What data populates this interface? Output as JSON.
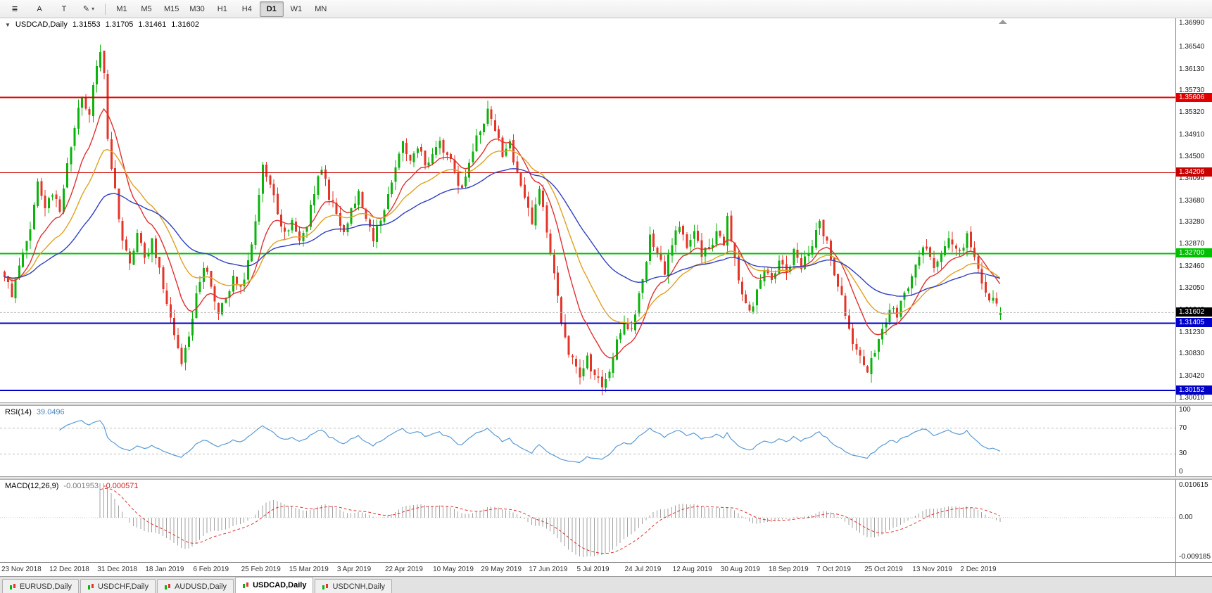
{
  "toolbar": {
    "left_tools": [
      {
        "name": "chart-list-icon-button",
        "glyph": "≣"
      },
      {
        "name": "pointer-tool-button",
        "label": "A"
      },
      {
        "name": "text-tool-button",
        "label": "T"
      },
      {
        "name": "draw-tool-button",
        "glyph": "✎",
        "caret": true
      }
    ],
    "timeframes": [
      "M1",
      "M5",
      "M15",
      "M30",
      "H1",
      "H4",
      "D1",
      "W1",
      "MN"
    ],
    "active_timeframe": "D1"
  },
  "main_header": {
    "expander": "▼",
    "symbol": "USDCAD,Daily",
    "open": "1.31553",
    "high": "1.31705",
    "low": "1.31461",
    "close": "1.31602"
  },
  "rsi_header": {
    "label": "RSI(14)",
    "value": "39.0496"
  },
  "macd_header": {
    "label": "MACD(12,26,9)",
    "main": "-0.001953",
    "signal": "-0.000571"
  },
  "chart_data": {
    "type": "candlestick",
    "symbol": "USDCAD",
    "timeframe": "Daily",
    "visible_range": {
      "price_min": 1.2993,
      "price_max": 1.3708
    },
    "last_bar": {
      "open": 1.31553,
      "high": 1.31705,
      "low": 1.31461,
      "close": 1.31602
    },
    "current_price": 1.31602,
    "current_price_tag": {
      "label": "1.31602",
      "bg": "#000000"
    },
    "candle_colors": {
      "up": "#0cb30c",
      "down": "#e53529"
    },
    "close_pivots": [
      [
        0,
        1.3228
      ],
      [
        2,
        1.3192
      ],
      [
        4,
        1.3248
      ],
      [
        6,
        1.3292
      ],
      [
        8,
        1.336
      ],
      [
        9,
        1.3405
      ],
      [
        11,
        1.3352
      ],
      [
        13,
        1.3378
      ],
      [
        15,
        1.3348
      ],
      [
        17,
        1.3438
      ],
      [
        19,
        1.3502
      ],
      [
        21,
        1.3562
      ],
      [
        23,
        1.3528
      ],
      [
        25,
        1.3618
      ],
      [
        26,
        1.3642
      ],
      [
        27,
        1.3605
      ],
      [
        28,
        1.3482
      ],
      [
        30,
        1.3392
      ],
      [
        32,
        1.3292
      ],
      [
        34,
        1.3252
      ],
      [
        36,
        1.3306
      ],
      [
        38,
        1.3262
      ],
      [
        40,
        1.3298
      ],
      [
        42,
        1.3246
      ],
      [
        44,
        1.3178
      ],
      [
        46,
        1.3118
      ],
      [
        48,
        1.3062
      ],
      [
        49,
        1.3096
      ],
      [
        51,
        1.3148
      ],
      [
        52,
        1.3198
      ],
      [
        54,
        1.3244
      ],
      [
        56,
        1.3206
      ],
      [
        58,
        1.3156
      ],
      [
        60,
        1.3186
      ],
      [
        62,
        1.3228
      ],
      [
        64,
        1.3206
      ],
      [
        66,
        1.3258
      ],
      [
        68,
        1.3332
      ],
      [
        70,
        1.3438
      ],
      [
        72,
        1.3398
      ],
      [
        74,
        1.3342
      ],
      [
        76,
        1.3312
      ],
      [
        78,
        1.3332
      ],
      [
        80,
        1.3292
      ],
      [
        82,
        1.3322
      ],
      [
        84,
        1.3378
      ],
      [
        86,
        1.3428
      ],
      [
        88,
        1.3372
      ],
      [
        90,
        1.3342
      ],
      [
        92,
        1.3312
      ],
      [
        94,
        1.3352
      ],
      [
        96,
        1.3388
      ],
      [
        98,
        1.3332
      ],
      [
        100,
        1.3292
      ],
      [
        102,
        1.3332
      ],
      [
        104,
        1.3378
      ],
      [
        106,
        1.3428
      ],
      [
        108,
        1.3478
      ],
      [
        110,
        1.3442
      ],
      [
        112,
        1.3468
      ],
      [
        114,
        1.3432
      ],
      [
        116,
        1.3458
      ],
      [
        118,
        1.3478
      ],
      [
        120,
        1.3452
      ],
      [
        122,
        1.3422
      ],
      [
        124,
        1.3392
      ],
      [
        126,
        1.3438
      ],
      [
        128,
        1.3488
      ],
      [
        130,
        1.3512
      ],
      [
        131,
        1.3542
      ],
      [
        133,
        1.3498
      ],
      [
        135,
        1.3452
      ],
      [
        137,
        1.3478
      ],
      [
        139,
        1.3422
      ],
      [
        141,
        1.3372
      ],
      [
        143,
        1.3322
      ],
      [
        145,
        1.3388
      ],
      [
        147,
        1.3312
      ],
      [
        149,
        1.3232
      ],
      [
        151,
        1.3142
      ],
      [
        153,
        1.3082
      ],
      [
        155,
        1.3058
      ],
      [
        156,
        1.3042
      ],
      [
        158,
        1.3078
      ],
      [
        160,
        1.3042
      ],
      [
        162,
        1.3018
      ],
      [
        164,
        1.3052
      ],
      [
        166,
        1.3108
      ],
      [
        168,
        1.3142
      ],
      [
        170,
        1.3128
      ],
      [
        172,
        1.3198
      ],
      [
        174,
        1.3252
      ],
      [
        175,
        1.3308
      ],
      [
        177,
        1.3272
      ],
      [
        179,
        1.3232
      ],
      [
        181,
        1.3288
      ],
      [
        183,
        1.3318
      ],
      [
        185,
        1.3282
      ],
      [
        187,
        1.3312
      ],
      [
        189,
        1.3262
      ],
      [
        191,
        1.3282
      ],
      [
        193,
        1.3312
      ],
      [
        195,
        1.3288
      ],
      [
        196,
        1.3342
      ],
      [
        198,
        1.3262
      ],
      [
        200,
        1.3192
      ],
      [
        202,
        1.3162
      ],
      [
        204,
        1.3202
      ],
      [
        206,
        1.3242
      ],
      [
        208,
        1.3222
      ],
      [
        210,
        1.3258
      ],
      [
        212,
        1.3232
      ],
      [
        214,
        1.3278
      ],
      [
        216,
        1.3242
      ],
      [
        218,
        1.3272
      ],
      [
        220,
        1.3312
      ],
      [
        221,
        1.3332
      ],
      [
        223,
        1.3292
      ],
      [
        225,
        1.3232
      ],
      [
        227,
        1.3192
      ],
      [
        229,
        1.3132
      ],
      [
        231,
        1.3092
      ],
      [
        233,
        1.3062
      ],
      [
        234,
        1.3048
      ],
      [
        236,
        1.3082
      ],
      [
        238,
        1.3128
      ],
      [
        240,
        1.3168
      ],
      [
        242,
        1.3148
      ],
      [
        244,
        1.3198
      ],
      [
        246,
        1.3228
      ],
      [
        248,
        1.3262
      ],
      [
        250,
        1.3282
      ],
      [
        252,
        1.3242
      ],
      [
        254,
        1.3268
      ],
      [
        256,
        1.3298
      ],
      [
        258,
        1.3278
      ],
      [
        260,
        1.3282
      ],
      [
        261,
        1.3308
      ],
      [
        263,
        1.3262
      ],
      [
        265,
        1.3212
      ],
      [
        267,
        1.3182
      ],
      [
        269,
        1.3178
      ],
      [
        270,
        1.31602
      ]
    ],
    "overlays": [
      {
        "name": "ema-fast",
        "period": 12,
        "color": "#e03030"
      },
      {
        "name": "ema-mid",
        "period": 24,
        "color": "#e0a020"
      },
      {
        "name": "ema-slow",
        "period": 50,
        "color": "#3040c0"
      }
    ],
    "horizontal_lines": [
      {
        "price": 1.35606,
        "label": "1.35606",
        "color": "#e00000",
        "width": 2
      },
      {
        "price": 1.34206,
        "label": "1.34206",
        "color": "#c80000",
        "width": 1
      },
      {
        "price": 1.327,
        "label": "1.32700",
        "color": "#00c000",
        "width": 2
      },
      {
        "price": 1.31405,
        "label": "1.31405",
        "color": "#0000c8",
        "width": 2
      },
      {
        "price": 1.30152,
        "label": "1.30152",
        "color": "#0000c8",
        "width": 2
      }
    ],
    "y_axis_ticks": [
      "1.36990",
      "1.36540",
      "1.36130",
      "1.35730",
      "1.35320",
      "1.34910",
      "1.34500",
      "1.34090",
      "1.33680",
      "1.33280",
      "1.32870",
      "1.32460",
      "1.32050",
      "1.31640",
      "1.31230",
      "1.30830",
      "1.30420",
      "1.30010"
    ],
    "x_axis_dates": [
      "23 Nov 2018",
      "12 Dec 2018",
      "31 Dec 2018",
      "18 Jan 2019",
      "6 Feb 2019",
      "25 Feb 2019",
      "15 Mar 2019",
      "3 Apr 2019",
      "22 Apr 2019",
      "10 May 2019",
      "29 May 2019",
      "17 Jun 2019",
      "5 Jul 2019",
      "24 Jul 2019",
      "12 Aug 2019",
      "30 Aug 2019",
      "18 Sep 2019",
      "7 Oct 2019",
      "25 Oct 2019",
      "13 Nov 2019",
      "2 Dec 2019"
    ],
    "indicators": {
      "rsi": {
        "name": "RSI",
        "period": 14,
        "current": 39.0496,
        "levels": [
          70,
          30
        ],
        "range": [
          0,
          100
        ],
        "axis_labels": [
          "100",
          "70",
          "30",
          "0"
        ],
        "color": "#5b9bd5"
      },
      "macd": {
        "name": "MACD",
        "fast": 12,
        "slow": 26,
        "signal_period": 9,
        "main_current": -0.001953,
        "signal_current": -0.000571,
        "axis_labels": [
          "0.010615",
          "0.00",
          "-0.009185"
        ],
        "histogram_color": "#a0a0a0",
        "signal_color": "#e03030"
      }
    }
  },
  "tabs": {
    "items": [
      "EURUSD,Daily",
      "USDCHF,Daily",
      "AUDUSD,Daily",
      "USDCAD,Daily",
      "USDCNH,Daily"
    ],
    "active": "USDCAD,Daily"
  }
}
